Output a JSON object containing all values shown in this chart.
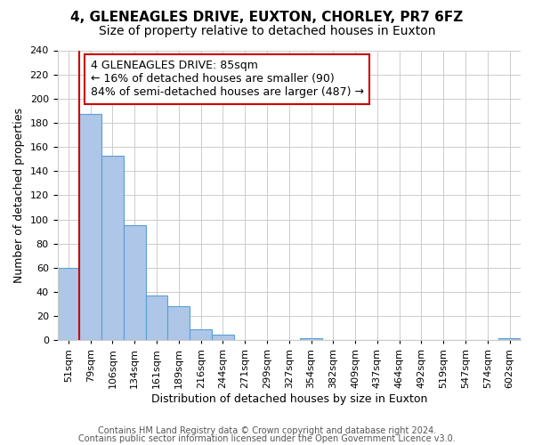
{
  "title": "4, GLENEAGLES DRIVE, EUXTON, CHORLEY, PR7 6FZ",
  "subtitle": "Size of property relative to detached houses in Euxton",
  "xlabel": "Distribution of detached houses by size in Euxton",
  "ylabel": "Number of detached properties",
  "bins": [
    "51sqm",
    "79sqm",
    "106sqm",
    "134sqm",
    "161sqm",
    "189sqm",
    "216sqm",
    "244sqm",
    "271sqm",
    "299sqm",
    "327sqm",
    "354sqm",
    "382sqm",
    "409sqm",
    "437sqm",
    "464sqm",
    "492sqm",
    "519sqm",
    "547sqm",
    "574sqm",
    "602sqm"
  ],
  "values": [
    60,
    187,
    153,
    95,
    37,
    28,
    9,
    5,
    0,
    0,
    0,
    2,
    0,
    0,
    0,
    0,
    0,
    0,
    0,
    0,
    2
  ],
  "bar_color": "#aec6e8",
  "bar_edge_color": "#5a9fd4",
  "highlight_color": "#cc0000",
  "annotation_line1": "4 GLENEAGLES DRIVE: 85sqm",
  "annotation_line2": "← 16% of detached houses are smaller (90)",
  "annotation_line3": "84% of semi-detached houses are larger (487) →",
  "annotation_box_color": "#ffffff",
  "annotation_box_edge": "#cc0000",
  "ylim": [
    0,
    240
  ],
  "yticks": [
    0,
    20,
    40,
    60,
    80,
    100,
    120,
    140,
    160,
    180,
    200,
    220,
    240
  ],
  "footer1": "Contains HM Land Registry data © Crown copyright and database right 2024.",
  "footer2": "Contains public sector information licensed under the Open Government Licence v3.0.",
  "bg_color": "#ffffff",
  "grid_color": "#cccccc",
  "title_fontsize": 11,
  "subtitle_fontsize": 10,
  "axis_label_fontsize": 9,
  "tick_fontsize": 8,
  "annotation_fontsize": 9,
  "footer_fontsize": 7
}
